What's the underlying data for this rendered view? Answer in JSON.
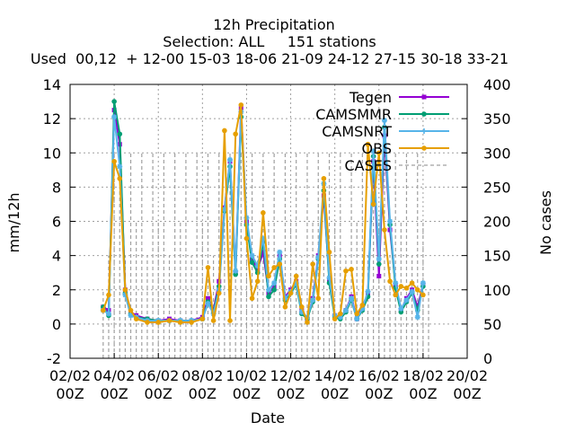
{
  "chart_data": {
    "type": "line",
    "title": [
      "12h Precipitation",
      "Selection: ALL     151 stations",
      "Used  00,12  + 12-00 15-03 18-06 21-09 24-12 27-15 30-18 33-21"
    ],
    "xlabel": "Date",
    "ylabel": "mm/12h",
    "y2label": "No cases",
    "ylim": [
      -2,
      14
    ],
    "y2lim": [
      0,
      400
    ],
    "xlim": [
      0,
      36
    ],
    "yticks": [
      "-2",
      "0",
      "2",
      "4",
      "6",
      "8",
      "10",
      "12",
      "14"
    ],
    "y2ticks": [
      "0",
      "50",
      "100",
      "150",
      "200",
      "250",
      "300",
      "350",
      "400"
    ],
    "xticks": [
      {
        "top": "02/02",
        "bottom": "00Z"
      },
      {
        "top": "04/02",
        "bottom": "00Z"
      },
      {
        "top": "06/02",
        "bottom": "00Z"
      },
      {
        "top": "08/02",
        "bottom": "00Z"
      },
      {
        "top": "10/02",
        "bottom": "00Z"
      },
      {
        "top": "12/02",
        "bottom": "00Z"
      },
      {
        "top": "14/02",
        "bottom": "00Z"
      },
      {
        "top": "16/02",
        "bottom": "00Z"
      },
      {
        "top": "18/02",
        "bottom": "00Z"
      },
      {
        "top": "20/02",
        "bottom": "00Z"
      }
    ],
    "grid": true,
    "legend_position": "top-right",
    "series": [
      {
        "name": "Tegen",
        "color": "#9400d3",
        "marker": "square",
        "values": [
          [
            3,
            1.0
          ],
          [
            3.5,
            0.8
          ],
          [
            4,
            12.5
          ],
          [
            4.5,
            10.5
          ],
          [
            5,
            2.0
          ],
          [
            5.5,
            0.7
          ],
          [
            6,
            0.5
          ],
          [
            7,
            0.3
          ],
          [
            8,
            0.2
          ],
          [
            9,
            0.3
          ],
          [
            10,
            0.2
          ],
          [
            11,
            0.2
          ],
          [
            12,
            0.4
          ],
          [
            12.5,
            1.5
          ],
          [
            13,
            0.8
          ],
          [
            13.5,
            2.5
          ],
          [
            14,
            6.8
          ],
          [
            14.5,
            9.5
          ],
          [
            15,
            3.0
          ],
          [
            15.5,
            12.6
          ],
          [
            16,
            6.0
          ],
          [
            16.5,
            3.8
          ],
          [
            17,
            3.2
          ],
          [
            17.5,
            4.2
          ],
          [
            18,
            1.8
          ],
          [
            18.5,
            2.2
          ],
          [
            19,
            4.0
          ],
          [
            19.5,
            1.6
          ],
          [
            20,
            2.0
          ],
          [
            20.5,
            2.5
          ],
          [
            21,
            0.8
          ],
          [
            21.5,
            0.3
          ],
          [
            22,
            1.5
          ],
          [
            22.5,
            4.0
          ],
          [
            23,
            7.5
          ],
          [
            23.5,
            2.6
          ],
          [
            24,
            0.5
          ],
          [
            24.5,
            0.4
          ],
          [
            25,
            0.8
          ],
          [
            25.5,
            1.6
          ],
          [
            26,
            0.3
          ],
          [
            26.5,
            1.0
          ],
          [
            27,
            1.8
          ],
          [
            27.5,
            9.5
          ],
          [
            28,
            2.8
          ],
          [
            28.5,
            11.0
          ],
          [
            29,
            5.5
          ],
          [
            29.5,
            2.3
          ],
          [
            30,
            0.8
          ],
          [
            30.5,
            1.5
          ],
          [
            31,
            2.0
          ],
          [
            31.5,
            1.0
          ],
          [
            32,
            2.3
          ]
        ]
      },
      {
        "name": "CAMSMMR",
        "color": "#009e73",
        "marker": "circle",
        "values": [
          [
            3,
            1.0
          ],
          [
            3.5,
            0.5
          ],
          [
            4,
            13.0
          ],
          [
            4.5,
            11.1
          ],
          [
            5,
            1.8
          ],
          [
            5.5,
            0.6
          ],
          [
            6,
            0.4
          ],
          [
            7,
            0.3
          ],
          [
            8,
            0.2
          ],
          [
            9,
            0.2
          ],
          [
            10,
            0.2
          ],
          [
            11,
            0.2
          ],
          [
            12,
            0.3
          ],
          [
            12.5,
            1.3
          ],
          [
            13,
            0.7
          ],
          [
            13.5,
            2.2
          ],
          [
            14,
            6.6
          ],
          [
            14.5,
            9.2
          ],
          [
            15,
            2.9
          ],
          [
            15.5,
            12.1
          ],
          [
            16,
            5.8
          ],
          [
            16.5,
            3.6
          ],
          [
            17,
            3.0
          ],
          [
            17.5,
            4.8
          ],
          [
            18,
            1.6
          ],
          [
            18.5,
            2.0
          ],
          [
            19,
            3.8
          ],
          [
            19.5,
            1.4
          ],
          [
            20,
            1.8
          ],
          [
            20.5,
            2.3
          ],
          [
            21,
            0.6
          ],
          [
            21.5,
            0.3
          ],
          [
            22,
            1.3
          ],
          [
            22.5,
            3.8
          ],
          [
            23,
            7.8
          ],
          [
            23.5,
            2.4
          ],
          [
            24,
            0.4
          ],
          [
            24.5,
            0.3
          ],
          [
            25,
            0.7
          ],
          [
            25.5,
            1.4
          ],
          [
            26,
            0.3
          ],
          [
            26.5,
            0.8
          ],
          [
            27,
            1.6
          ],
          [
            27.5,
            9.8
          ],
          [
            28,
            3.5
          ],
          [
            28.5,
            11.5
          ],
          [
            29,
            5.8
          ],
          [
            29.5,
            2.1
          ],
          [
            30,
            0.7
          ],
          [
            30.5,
            1.3
          ],
          [
            31,
            1.8
          ],
          [
            31.5,
            0.8
          ],
          [
            32,
            2.2
          ]
        ]
      },
      {
        "name": "CAMSNRT",
        "color": "#56b4e9",
        "marker": "star",
        "values": [
          [
            3,
            0.8
          ],
          [
            3.5,
            0.6
          ],
          [
            4,
            12.1
          ],
          [
            4.5,
            9.2
          ],
          [
            5,
            1.7
          ],
          [
            5.5,
            0.5
          ],
          [
            6,
            0.4
          ],
          [
            7,
            0.2
          ],
          [
            8,
            0.2
          ],
          [
            9,
            0.2
          ],
          [
            10,
            0.2
          ],
          [
            11,
            0.2
          ],
          [
            12,
            0.3
          ],
          [
            12.5,
            1.2
          ],
          [
            13,
            0.6
          ],
          [
            13.5,
            2.0
          ],
          [
            14,
            6.7
          ],
          [
            14.5,
            9.6
          ],
          [
            15,
            3.1
          ],
          [
            15.5,
            12.4
          ],
          [
            16,
            6.2
          ],
          [
            16.5,
            4.0
          ],
          [
            17,
            3.4
          ],
          [
            17.5,
            5.0
          ],
          [
            18,
            2.0
          ],
          [
            18.5,
            2.4
          ],
          [
            19,
            4.2
          ],
          [
            19.5,
            1.5
          ],
          [
            20,
            1.9
          ],
          [
            20.5,
            2.4
          ],
          [
            21,
            0.7
          ],
          [
            21.5,
            0.4
          ],
          [
            22,
            1.4
          ],
          [
            22.5,
            3.9
          ],
          [
            23,
            8.2
          ],
          [
            23.5,
            2.7
          ],
          [
            24,
            0.5
          ],
          [
            24.5,
            0.4
          ],
          [
            25,
            0.8
          ],
          [
            25.5,
            1.5
          ],
          [
            26,
            0.3
          ],
          [
            26.5,
            0.9
          ],
          [
            27,
            1.9
          ],
          [
            27.5,
            10.1
          ],
          [
            28,
            3.8
          ],
          [
            28.5,
            11.9
          ],
          [
            29,
            6.0
          ],
          [
            29.5,
            2.4
          ],
          [
            30,
            0.9
          ],
          [
            30.5,
            1.4
          ],
          [
            31,
            1.9
          ],
          [
            31.5,
            0.4
          ],
          [
            32,
            2.4
          ]
        ]
      },
      {
        "name": "OBS",
        "color": "#e69f00",
        "marker": "circle",
        "values": [
          [
            3,
            0.8
          ],
          [
            3.5,
            1.7
          ],
          [
            4,
            9.5
          ],
          [
            4.5,
            8.5
          ],
          [
            5,
            2.0
          ],
          [
            5.5,
            0.8
          ],
          [
            6,
            0.3
          ],
          [
            7,
            0.1
          ],
          [
            8,
            0.1
          ],
          [
            9,
            0.2
          ],
          [
            10,
            0.1
          ],
          [
            11,
            0.1
          ],
          [
            12,
            0.3
          ],
          [
            12.5,
            3.3
          ],
          [
            13,
            0.2
          ],
          [
            13.5,
            1.8
          ],
          [
            14,
            11.3
          ],
          [
            14.5,
            0.2
          ],
          [
            15,
            11.1
          ],
          [
            15.5,
            12.8
          ],
          [
            16,
            5.0
          ],
          [
            16.5,
            1.5
          ],
          [
            17,
            2.5
          ],
          [
            17.5,
            6.5
          ],
          [
            18,
            2.8
          ],
          [
            18.5,
            3.3
          ],
          [
            19,
            3.5
          ],
          [
            19.5,
            1.0
          ],
          [
            20,
            1.8
          ],
          [
            20.5,
            2.8
          ],
          [
            21,
            1.0
          ],
          [
            21.5,
            0.1
          ],
          [
            22,
            3.5
          ],
          [
            22.5,
            1.5
          ],
          [
            23,
            8.5
          ],
          [
            23.5,
            4.2
          ],
          [
            24,
            0.3
          ],
          [
            24.5,
            0.6
          ],
          [
            25,
            3.1
          ],
          [
            25.5,
            3.2
          ],
          [
            26,
            0.6
          ],
          [
            26.5,
            1.1
          ],
          [
            27,
            10.5
          ],
          [
            27.5,
            7.0
          ],
          [
            28,
            10.0
          ],
          [
            28.5,
            5.5
          ],
          [
            29,
            2.5
          ],
          [
            29.5,
            1.7
          ],
          [
            30,
            2.2
          ],
          [
            30.5,
            2.1
          ],
          [
            31,
            2.4
          ],
          [
            31.5,
            2.0
          ],
          [
            32,
            1.7
          ]
        ]
      },
      {
        "name": "CASES",
        "color": "#a0a0a0",
        "marker": "none",
        "axis": "y2",
        "style": "impulses",
        "values": [
          [
            3,
            100
          ],
          [
            3.5,
            150
          ],
          [
            4,
            300
          ],
          [
            4.5,
            250
          ],
          [
            5,
            150
          ],
          [
            5.5,
            300
          ],
          [
            6,
            200
          ],
          [
            6.5,
            300
          ],
          [
            7,
            150
          ],
          [
            7.5,
            300
          ],
          [
            8,
            200
          ],
          [
            8.5,
            300
          ],
          [
            9,
            150
          ],
          [
            9.5,
            300
          ],
          [
            10,
            200
          ],
          [
            10.5,
            300
          ],
          [
            11,
            150
          ],
          [
            11.5,
            300
          ],
          [
            12,
            200
          ],
          [
            12.5,
            300
          ],
          [
            13,
            150
          ],
          [
            13.5,
            300
          ],
          [
            14,
            200
          ],
          [
            14.5,
            300
          ],
          [
            15,
            150
          ],
          [
            15.5,
            300
          ],
          [
            16,
            200
          ],
          [
            16.5,
            300
          ],
          [
            17,
            150
          ],
          [
            17.5,
            300
          ],
          [
            18,
            200
          ],
          [
            18.5,
            300
          ],
          [
            19,
            150
          ],
          [
            19.5,
            300
          ],
          [
            20,
            200
          ],
          [
            20.5,
            300
          ],
          [
            21,
            150
          ],
          [
            21.5,
            300
          ],
          [
            22,
            200
          ],
          [
            22.5,
            300
          ],
          [
            23,
            150
          ],
          [
            23.5,
            300
          ],
          [
            24,
            200
          ],
          [
            24.5,
            300
          ],
          [
            25,
            150
          ],
          [
            25.5,
            300
          ],
          [
            26,
            200
          ],
          [
            26.5,
            300
          ],
          [
            27,
            150
          ],
          [
            27.5,
            300
          ],
          [
            28,
            200
          ],
          [
            28.5,
            300
          ],
          [
            29,
            150
          ],
          [
            29.5,
            300
          ],
          [
            30,
            200
          ],
          [
            30.5,
            300
          ],
          [
            31,
            150
          ],
          [
            31.5,
            300
          ],
          [
            32,
            200
          ],
          [
            32.5,
            100
          ]
        ]
      }
    ]
  }
}
